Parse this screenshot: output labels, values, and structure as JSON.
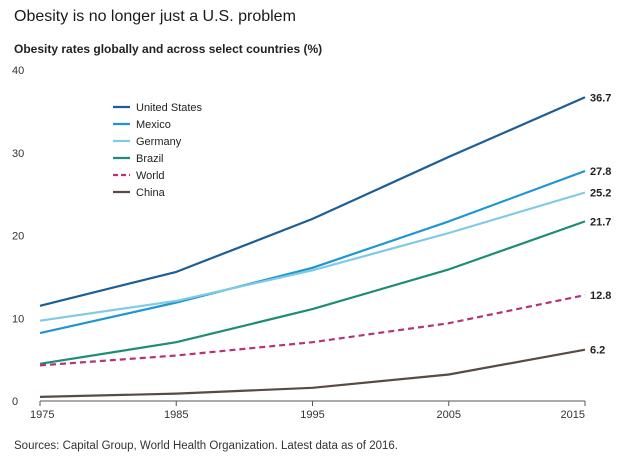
{
  "title": "Obesity is no longer just a U.S. problem",
  "source": "Sources: Capital Group, World Health Organization. Latest data as of 2016.",
  "chart_data": {
    "type": "line",
    "title": "Obesity is no longer just a U.S. problem",
    "subtitle": "Obesity rates globally and across select countries (%)",
    "xlabel": "",
    "ylabel": "",
    "x": [
      1975,
      1985,
      1995,
      2005,
      2015
    ],
    "ylim": [
      0,
      40
    ],
    "yticks": [
      0,
      10,
      20,
      30,
      40
    ],
    "grid": false,
    "legend_position": "top-left",
    "series": [
      {
        "name": "United States",
        "color": "#1b5e96",
        "dashed": false,
        "values": [
          11.5,
          15.6,
          22.0,
          29.5,
          36.7
        ],
        "end_label": "36.7"
      },
      {
        "name": "Mexico",
        "color": "#1f95d2",
        "dashed": false,
        "values": [
          8.2,
          11.9,
          16.1,
          21.7,
          27.8
        ],
        "end_label": "27.8"
      },
      {
        "name": "Germany",
        "color": "#7fcbe6",
        "dashed": false,
        "values": [
          9.7,
          12.1,
          15.8,
          20.3,
          25.2
        ],
        "end_label": "25.2"
      },
      {
        "name": "Brazil",
        "color": "#1f8c75",
        "dashed": false,
        "values": [
          4.5,
          7.1,
          11.1,
          15.9,
          21.7
        ],
        "end_label": "21.7"
      },
      {
        "name": "World",
        "color": "#b5337a",
        "dashed": true,
        "values": [
          4.3,
          5.5,
          7.1,
          9.4,
          12.8
        ],
        "end_label": "12.8"
      },
      {
        "name": "China",
        "color": "#5a4a44",
        "dashed": false,
        "values": [
          0.5,
          0.9,
          1.6,
          3.2,
          6.2
        ],
        "end_label": "6.2"
      }
    ]
  }
}
